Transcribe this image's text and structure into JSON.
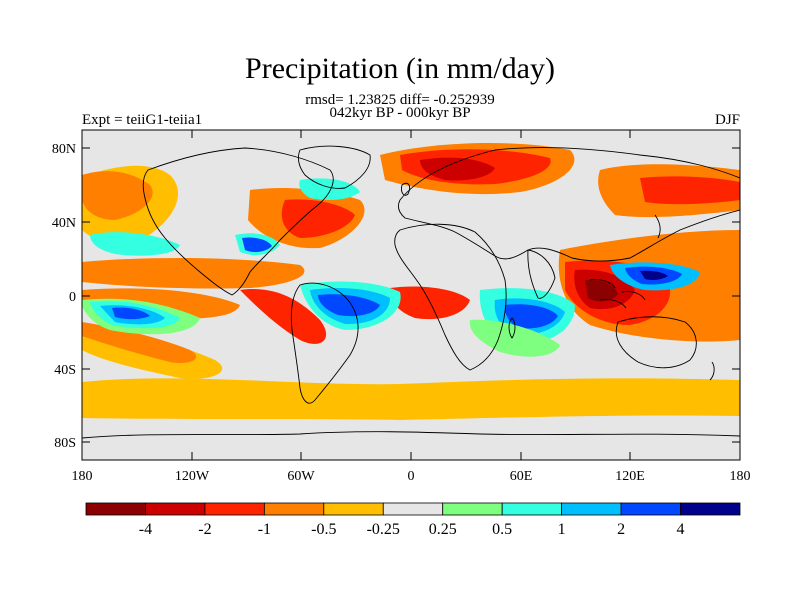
{
  "title": "Precipitation (in mm/day)",
  "stats": "rmsd= 1.23825 diff= -0.252939",
  "period": "042kyr BP - 000kyr BP",
  "experiment": "Expt = teiiG1-teiia1",
  "season": "DJF",
  "lat_ticks": [
    "80N",
    "40N",
    "0",
    "40S",
    "80S"
  ],
  "lon_ticks": [
    "180",
    "120W",
    "60W",
    "0",
    "60E",
    "120E",
    "180"
  ],
  "colorbar": {
    "labels": [
      "-4",
      "-2",
      "-1",
      "-0.5",
      "-0.25",
      "0.25",
      "0.5",
      "1",
      "2",
      "4"
    ],
    "colors": [
      "#8b0000",
      "#cd0000",
      "#ff2400",
      "#ff7f00",
      "#ffbf00",
      "#e6e6e6",
      "#7fff7f",
      "#34ffe0",
      "#00bfff",
      "#0047ff",
      "#00008b"
    ]
  },
  "map_colors": {
    "background": "#e6e6e6",
    "coast": "#000000"
  }
}
